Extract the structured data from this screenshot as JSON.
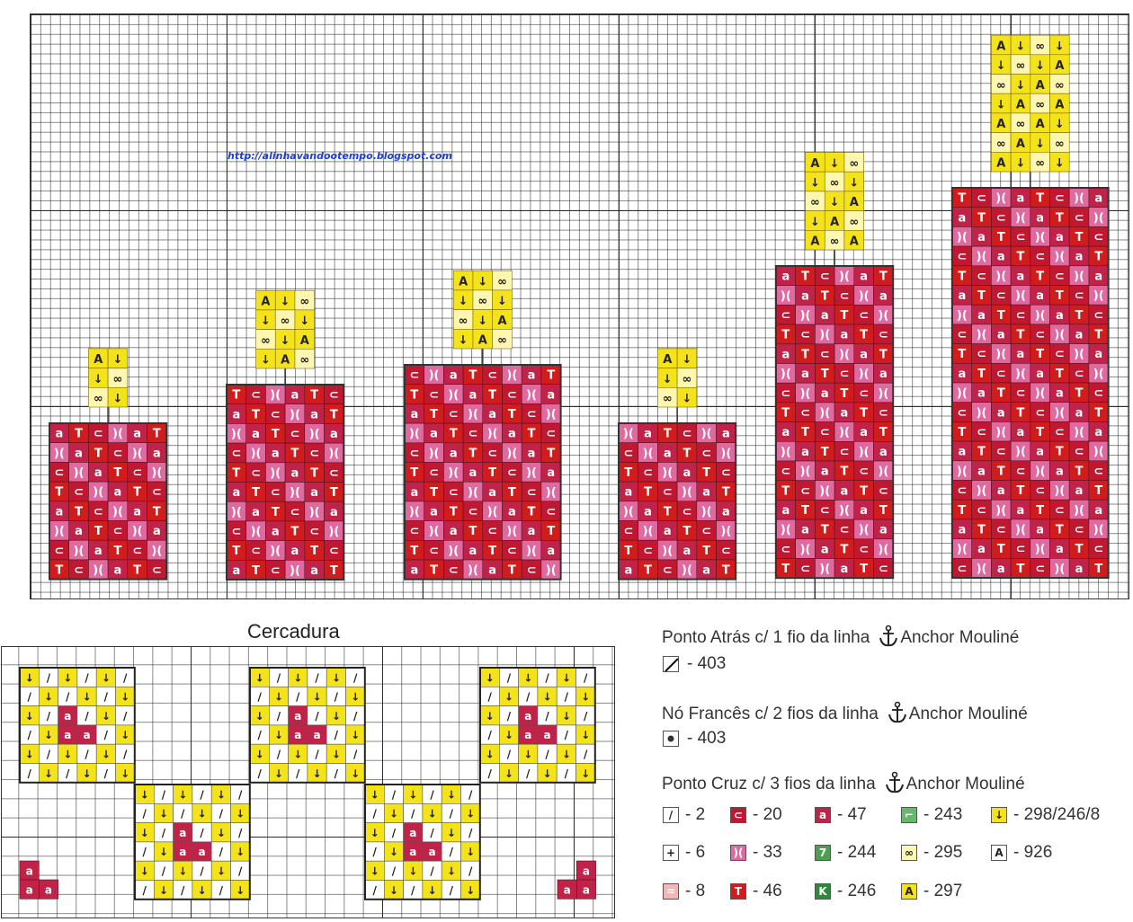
{
  "watermark_url": "http://alinhavandootempo.blogspot.com",
  "section_title": "Cercadura",
  "legend": {
    "backstitch": {
      "heading": "Ponto Atrás c/ 1 fio da linha",
      "brand": "Anchor Mouliné",
      "item": "- 403"
    },
    "french_knot": {
      "heading": "Nó Francês c/ 2 fios da linha",
      "brand": "Anchor Mouliné",
      "item": "- 403"
    },
    "cross_stitch": {
      "heading": "Ponto Cruz c/ 3 fios da linha",
      "brand": "Anchor Mouliné"
    },
    "items": [
      {
        "label": "- 2",
        "symbol": "/",
        "color": "#ffffff"
      },
      {
        "label": "- 20",
        "symbol": "⊂",
        "color": "#c01830"
      },
      {
        "label": "- 47",
        "symbol": "a",
        "color": "#c02248"
      },
      {
        "label": "- 243",
        "symbol": "⌐",
        "color": "#66b86a"
      },
      {
        "label": "- 298/246/8",
        "symbol": "↓",
        "color": "#f4e21a"
      },
      {
        "label": "- 6",
        "symbol": "+",
        "color": "#ffffff"
      },
      {
        "label": "- 33",
        "symbol": ")(",
        "color": "#e06aa0"
      },
      {
        "label": "- 244",
        "symbol": "7",
        "color": "#4aa04e"
      },
      {
        "label": "- 295",
        "symbol": "∞",
        "color": "#fff6b0"
      },
      {
        "label": "- 926",
        "symbol": "A",
        "color": "#ffffff"
      },
      {
        "label": "- 8",
        "symbol": "=",
        "color": "#f4b6b6"
      },
      {
        "label": "- 46",
        "symbol": "T",
        "color": "#d01c1c"
      },
      {
        "label": "- 246",
        "symbol": "K",
        "color": "#2e8a3a"
      },
      {
        "label": "- 297",
        "symbol": "A",
        "color": "#f4e21a"
      }
    ]
  },
  "colors": {
    "deep_red": "#c01830",
    "rose": "#c02248",
    "pink": "#e06aa0",
    "red": "#d01c1c",
    "yellow": "#f4e21a",
    "cream": "#fff6b0"
  }
}
